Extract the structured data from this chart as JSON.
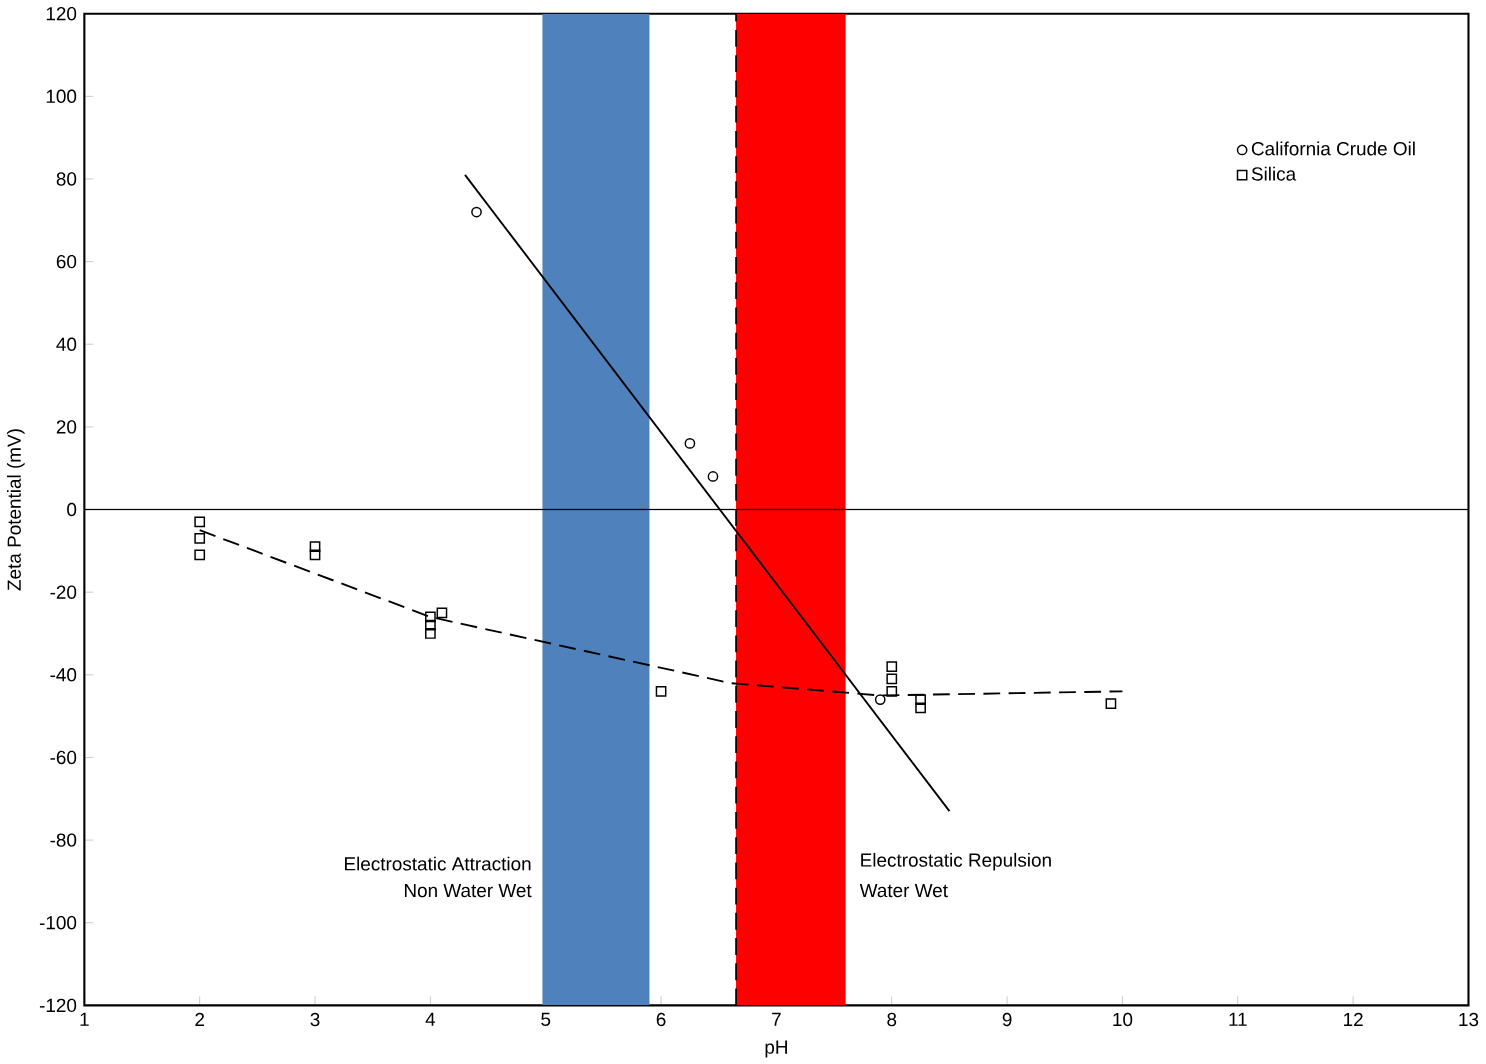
{
  "chart_data": {
    "type": "scatter",
    "xlabel": "pH",
    "ylabel": "Zeta Potential (mV)",
    "xlim": [
      1,
      13
    ],
    "xticks": [
      1,
      2,
      3,
      4,
      5,
      6,
      7,
      8,
      9,
      10,
      11,
      12,
      13
    ],
    "ylim": [
      -120,
      120
    ],
    "yticks": [
      -120,
      -100,
      -80,
      -60,
      -40,
      -20,
      0,
      20,
      40,
      60,
      80,
      100,
      120
    ],
    "grid": false,
    "legend": "top right",
    "series": [
      {
        "name": "California Crude Oil",
        "color": "#000000",
        "marker": "circle",
        "x": [
          4.4,
          6.25,
          6.45,
          7.9
        ],
        "values": [
          72,
          16,
          8,
          -46
        ]
      },
      {
        "name": "Silica",
        "color": "#000000",
        "marker": "square",
        "x": [
          2,
          2,
          2,
          3,
          3,
          4,
          4,
          4,
          4.1,
          6,
          8,
          8,
          8,
          8.25,
          8.25,
          9.9
        ],
        "values": [
          -3,
          -7,
          -11,
          -9,
          -11,
          -26,
          -28,
          -30,
          -25,
          -44,
          -38,
          -41,
          -44,
          -46,
          -48,
          -47
        ]
      },
      {
        "type": "line",
        "color": "#000000",
        "line_style": "solid",
        "marker": "none",
        "x": [
          4.3,
          8.5
        ],
        "values": [
          81,
          -73
        ]
      },
      {
        "type": "line",
        "color": "#000000",
        "line_style": "dashed",
        "marker": "none",
        "x": [
          2,
          4,
          6.6,
          7.9,
          10
        ],
        "values": [
          -5,
          -26,
          -42,
          -45,
          -44
        ]
      }
    ],
    "ref_lines": [
      {
        "axis": "y",
        "value": 0,
        "color": "#000000",
        "line_style": "solid"
      },
      {
        "axis": "x",
        "value": 6.65,
        "color": "#000000",
        "line_style": "dashed"
      }
    ],
    "bands": [
      {
        "axis": "x",
        "from": 4.97,
        "to": 5.9,
        "color": "#4f81bd"
      },
      {
        "axis": "x",
        "from": 6.65,
        "to": 7.6,
        "color": "#ff0000"
      }
    ],
    "annotations": [
      "Electrostatic Attraction",
      "Non Water Wet",
      "Electrostatic Repulsion",
      "Water Wet"
    ]
  }
}
